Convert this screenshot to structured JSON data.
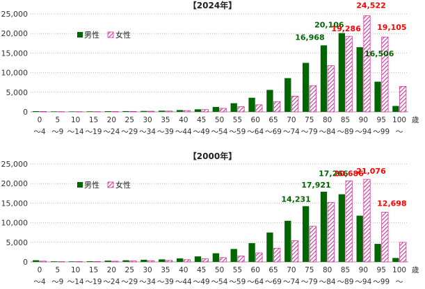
{
  "chart_data": [
    {
      "type": "bar",
      "title": "【2024年】",
      "categories": [
        "0\n～4",
        "5\n～9",
        "10\n～14",
        "15\n～19",
        "20\n～24",
        "25\n～29",
        "30\n～34",
        "35\n～39",
        "40\n～44",
        "45\n～49",
        "50\n～54",
        "55\n～59",
        "60\n～64",
        "65\n～69",
        "70\n～74",
        "75\n～79",
        "80\n～84",
        "85\n～89",
        "90\n～94",
        "95\n～99",
        "100\n～"
      ],
      "x_unit": "歳",
      "ylim": [
        0,
        25000
      ],
      "yticks": [
        0,
        5000,
        10000,
        15000,
        20000,
        25000
      ],
      "ytick_labels": [
        "0",
        "5,000",
        "10,000",
        "15,000",
        "20,000",
        "25,000"
      ],
      "legend_position": "top-left",
      "grid": true,
      "series": [
        {
          "name": "男性",
          "color": "#006600",
          "values": [
            180,
            120,
            110,
            130,
            170,
            190,
            230,
            300,
            450,
            650,
            1250,
            2200,
            3600,
            5600,
            8600,
            12500,
            16968,
            20106,
            16506,
            7700,
            1500
          ]
        },
        {
          "name": "女性",
          "color": "#cc3399",
          "pattern": "hatched",
          "values": [
            100,
            60,
            60,
            70,
            90,
            110,
            160,
            200,
            330,
            580,
            900,
            1300,
            1800,
            2600,
            4000,
            6700,
            11800,
            19286,
            24522,
            19105,
            6500
          ]
        }
      ],
      "annotations": [
        {
          "label": "16,968",
          "color": "#006600",
          "category": "80\n～84",
          "series": "男性"
        },
        {
          "label": "20,106",
          "color": "#006600",
          "category": "85\n～89",
          "series": "男性"
        },
        {
          "label": "16,506",
          "color": "#006600",
          "category": "90\n～94",
          "series": "男性"
        },
        {
          "label": "19,286",
          "color": "#ff0000",
          "category": "85\n～89",
          "series": "女性"
        },
        {
          "label": "24,522",
          "color": "#ff0000",
          "category": "90\n～94",
          "series": "女性"
        },
        {
          "label": "19,105",
          "color": "#ff0000",
          "category": "95\n～99",
          "series": "女性"
        }
      ]
    },
    {
      "type": "bar",
      "title": "【2000年】",
      "categories": [
        "0\n～4",
        "5\n～9",
        "10\n～14",
        "15\n～19",
        "20\n～24",
        "25\n～29",
        "30\n～34",
        "35\n～39",
        "40\n～44",
        "45\n～49",
        "50\n～54",
        "55\n～59",
        "60\n～64",
        "65\n～69",
        "70\n～74",
        "75\n～79",
        "80\n～84",
        "85\n～89",
        "90\n～94",
        "95\n～99",
        "100\n～"
      ],
      "x_unit": "歳",
      "ylim": [
        0,
        25000
      ],
      "yticks": [
        0,
        5000,
        10000,
        15000,
        20000,
        25000
      ],
      "ytick_labels": [
        "0",
        "5,000",
        "10,000",
        "15,000",
        "20,000",
        "25,000"
      ],
      "legend_position": "top-left",
      "grid": true,
      "series": [
        {
          "name": "男性",
          "color": "#006600",
          "values": [
            420,
            150,
            130,
            170,
            330,
            420,
            550,
            650,
            900,
            1400,
            2200,
            3300,
            4800,
            7500,
            10500,
            14231,
            17921,
            17266,
            11800,
            4600,
            1000
          ]
        },
        {
          "name": "女性",
          "color": "#cc3399",
          "pattern": "hatched",
          "values": [
            200,
            80,
            90,
            110,
            180,
            240,
            320,
            380,
            560,
            800,
            1100,
            1500,
            2300,
            3500,
            5400,
            9100,
            15200,
            20686,
            21076,
            12698,
            5000
          ]
        }
      ],
      "annotations": [
        {
          "label": "14,231",
          "color": "#006600",
          "category": "75\n～79",
          "series": "男性"
        },
        {
          "label": "17,921",
          "color": "#006600",
          "category": "80\n～84",
          "series": "男性"
        },
        {
          "label": "17,266",
          "color": "#006600",
          "category": "85\n～89",
          "series": "男性"
        },
        {
          "label": "20,686",
          "color": "#ff0000",
          "category": "85\n～89",
          "series": "女性"
        },
        {
          "label": "21,076",
          "color": "#ff0000",
          "category": "90\n～94",
          "series": "女性"
        },
        {
          "label": "12,698",
          "color": "#ff0000",
          "category": "95\n～99",
          "series": "女性"
        }
      ]
    }
  ]
}
